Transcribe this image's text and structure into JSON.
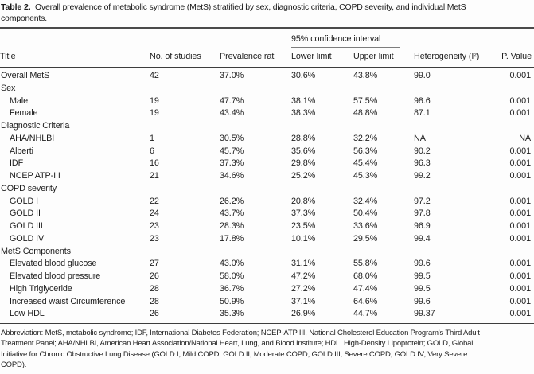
{
  "caption": {
    "label": "Table 2.",
    "line1": "Overall prevalence of metabolic syndrome (MetS) stratified by sex, diagnostic criteria, COPD severity, and individual MetS",
    "line2": "components."
  },
  "table": {
    "ci_header": "95% confidence interval",
    "columns": {
      "title": "Title",
      "studies": "No. of studies",
      "prevalence": "Prevalence rat",
      "lower": "Lower limit",
      "upper": "Upper limit",
      "heterogeneity": "Heterogeneity (I²)",
      "pvalue": "P. Value"
    },
    "rows": [
      {
        "title": "Overall MetS",
        "group": false,
        "indent": false,
        "studies": "42",
        "prevalence": "37.0%",
        "lower": "30.6%",
        "upper": "43.8%",
        "heterogeneity": "99.0",
        "p": "0.001"
      },
      {
        "title": "Sex",
        "group": true,
        "indent": false
      },
      {
        "title": "Male",
        "group": false,
        "indent": true,
        "studies": "19",
        "prevalence": "47.7%",
        "lower": "38.1%",
        "upper": "57.5%",
        "heterogeneity": "98.6",
        "p": "0.001"
      },
      {
        "title": "Female",
        "group": false,
        "indent": true,
        "studies": "19",
        "prevalence": "43.4%",
        "lower": "38.3%",
        "upper": "48.8%",
        "heterogeneity": "87.1",
        "p": "0.001"
      },
      {
        "title": "Diagnostic Criteria",
        "group": true,
        "indent": false
      },
      {
        "title": "AHA/NHLBI",
        "group": false,
        "indent": true,
        "studies": "1",
        "prevalence": "30.5%",
        "lower": "28.8%",
        "upper": "32.2%",
        "heterogeneity": "NA",
        "p": "NA"
      },
      {
        "title": "Alberti",
        "group": false,
        "indent": true,
        "studies": "6",
        "prevalence": "45.7%",
        "lower": "35.6%",
        "upper": "56.3%",
        "heterogeneity": "90.2",
        "p": "0.001"
      },
      {
        "title": "IDF",
        "group": false,
        "indent": true,
        "studies": "16",
        "prevalence": "37.3%",
        "lower": "29.8%",
        "upper": "45.4%",
        "heterogeneity": "96.3",
        "p": "0.001"
      },
      {
        "title": "NCEP ATP-III",
        "group": false,
        "indent": true,
        "studies": "21",
        "prevalence": "34.6%",
        "lower": "25.2%",
        "upper": "45.3%",
        "heterogeneity": "99.2",
        "p": "0.001"
      },
      {
        "title": "COPD severity",
        "group": true,
        "indent": false
      },
      {
        "title": "GOLD I",
        "group": false,
        "indent": true,
        "studies": "22",
        "prevalence": "26.2%",
        "lower": "20.8%",
        "upper": "32.4%",
        "heterogeneity": "97.2",
        "p": "0.001"
      },
      {
        "title": "GOLD II",
        "group": false,
        "indent": true,
        "studies": "24",
        "prevalence": "43.7%",
        "lower": "37.3%",
        "upper": "50.4%",
        "heterogeneity": "97.8",
        "p": "0.001"
      },
      {
        "title": "GOLD III",
        "group": false,
        "indent": true,
        "studies": "23",
        "prevalence": "28.3%",
        "lower": "23.5%",
        "upper": "33.6%",
        "heterogeneity": "96.9",
        "p": "0.001"
      },
      {
        "title": "GOLD IV",
        "group": false,
        "indent": true,
        "studies": "23",
        "prevalence": "17.8%",
        "lower": "10.1%",
        "upper": "29.5%",
        "heterogeneity": "99.4",
        "p": "0.001"
      },
      {
        "title": "MetS Components",
        "group": true,
        "indent": false
      },
      {
        "title": "Elevated blood glucose",
        "group": false,
        "indent": true,
        "studies": "27",
        "prevalence": "43.0%",
        "lower": "31.1%",
        "upper": "55.8%",
        "heterogeneity": "99.6",
        "p": "0.001"
      },
      {
        "title": "Elevated blood pressure",
        "group": false,
        "indent": true,
        "studies": "26",
        "prevalence": "58.0%",
        "lower": "47.2%",
        "upper": "68.0%",
        "heterogeneity": "99.5",
        "p": "0.001"
      },
      {
        "title": "High Triglyceride",
        "group": false,
        "indent": true,
        "studies": "28",
        "prevalence": "36.7%",
        "lower": "27.2%",
        "upper": "47.4%",
        "heterogeneity": "99.5",
        "p": "0.001"
      },
      {
        "title": "Increased waist Circumference",
        "group": false,
        "indent": true,
        "studies": "28",
        "prevalence": "50.9%",
        "lower": "37.1%",
        "upper": "64.6%",
        "heterogeneity": "99.6",
        "p": "0.001"
      },
      {
        "title": "Low HDL",
        "group": false,
        "indent": true,
        "studies": "26",
        "prevalence": "35.3%",
        "lower": "26.9%",
        "upper": "44.7%",
        "heterogeneity": "99.37",
        "p": "0.001"
      }
    ]
  },
  "footnote": {
    "lines": [
      "Abbreviation: MetS, metabolic syndrome; IDF, International Diabetes Federation; NCEP-ATP III, National Cholesterol Education Program's Third Adult",
      "Treatment Panel; AHA/NHLBI, American Heart Association/National Heart, Lung, and Blood Institute; HDL, High-Density Lipoprotein; GOLD, Global",
      "Initiative for Chronic Obstructive Lung Disease (GOLD I; Mild COPD, GOLD II; Moderate COPD, GOLD III; Severe COPD, GOLD IV; Very Severe",
      "COPD)."
    ]
  }
}
